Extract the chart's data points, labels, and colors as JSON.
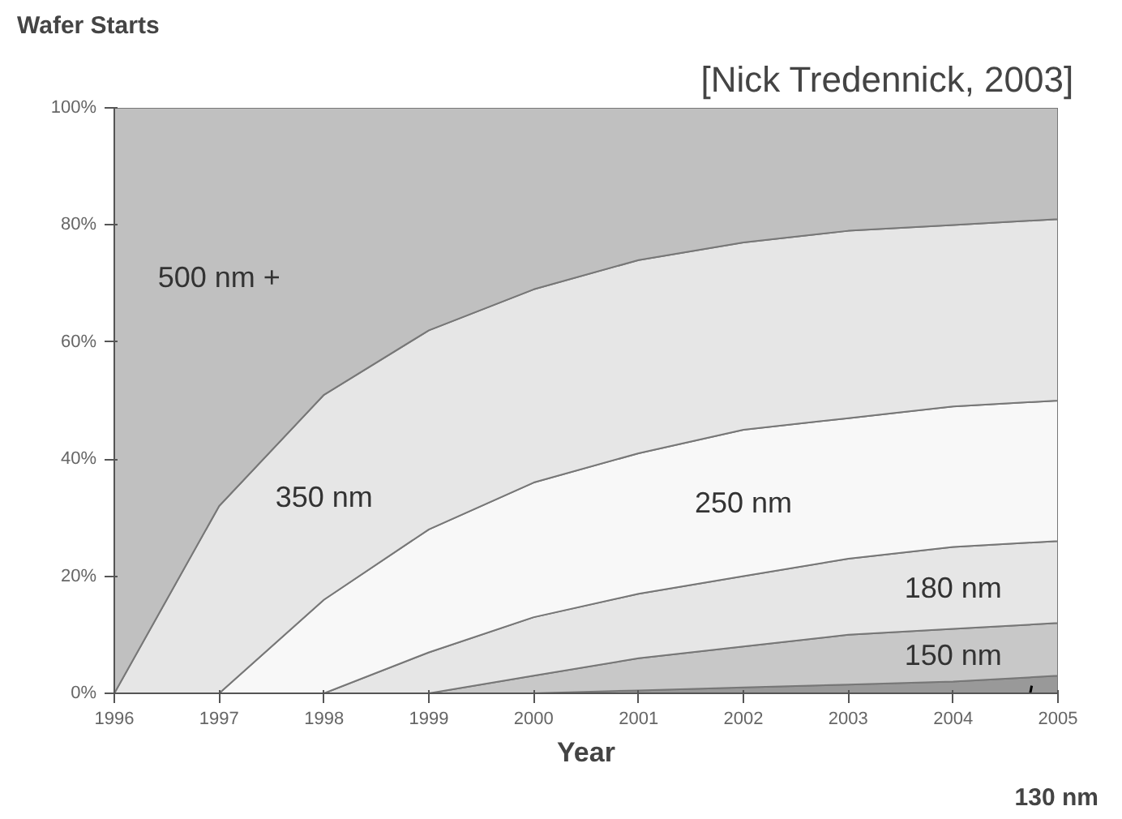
{
  "chart_data": {
    "type": "area",
    "stacked": true,
    "title": "Wafer Starts",
    "xlabel": "Year",
    "annotations": [
      "[Nick Tredennick, 2003]"
    ],
    "x": [
      1996,
      1997,
      1998,
      1999,
      2000,
      2001,
      2002,
      2003,
      2004,
      2005
    ],
    "series": [
      {
        "name": "130 nm",
        "color": "#999999",
        "values": [
          0,
          0,
          0,
          0,
          0,
          0.5,
          1,
          1.5,
          2,
          3
        ]
      },
      {
        "name": "150 nm",
        "color": "#c8c8c8",
        "values": [
          0,
          0,
          0,
          0,
          3,
          5.5,
          7,
          8.5,
          9,
          9
        ]
      },
      {
        "name": "180 nm",
        "color": "#e6e6e6",
        "values": [
          0,
          0,
          0,
          7,
          10,
          11,
          12,
          13,
          14,
          14
        ]
      },
      {
        "name": "250 nm",
        "color": "#f8f8f8",
        "values": [
          0,
          0,
          16,
          21,
          23,
          24,
          25,
          24,
          24,
          24
        ]
      },
      {
        "name": "350 nm",
        "color": "#e6e6e6",
        "values": [
          0,
          32,
          35,
          34,
          33,
          33,
          32,
          32,
          31,
          31
        ]
      },
      {
        "name": "500 nm +",
        "color": "#c0c0c0",
        "values": [
          100,
          68,
          49,
          38,
          31,
          26,
          23,
          21,
          20,
          19
        ]
      }
    ],
    "xlim": [
      1996,
      2005
    ],
    "xticks": [
      1996,
      1997,
      1998,
      1999,
      2000,
      2001,
      2002,
      2003,
      2004,
      2005
    ],
    "ylim": [
      0,
      100
    ],
    "yticks": [
      {
        "value": 0,
        "label": "0%"
      },
      {
        "value": 20,
        "label": "20%"
      },
      {
        "value": 40,
        "label": "40%"
      },
      {
        "value": 60,
        "label": "60%"
      },
      {
        "value": 80,
        "label": "80%"
      },
      {
        "value": 100,
        "label": "100%"
      }
    ]
  }
}
